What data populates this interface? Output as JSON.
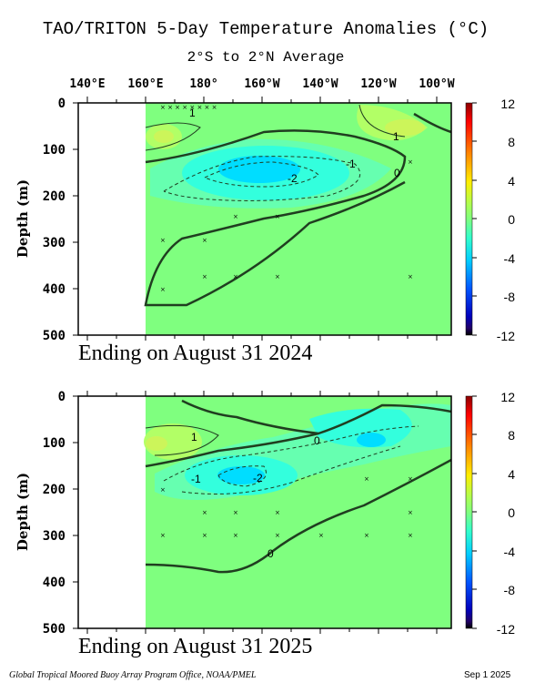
{
  "header": {
    "title": "TAO/TRITON 5-Day Temperature Anomalies (°C)",
    "subtitle": "2°S to 2°N Average"
  },
  "footer": {
    "credit": "Global Tropical Moored Buoy Array Program Office, NOAA/PMEL",
    "date": "Sep  1 2025"
  },
  "chart_data": [
    {
      "type": "heatmap",
      "caption": "Ending on August 31 2024",
      "ylabel": "Depth (m)",
      "x_ticklabels": [
        "140°E",
        "160°E",
        "180°",
        "160°W",
        "140°W",
        "120°W",
        "100°W"
      ],
      "y_ticklabels": [
        "0",
        "100",
        "200",
        "300",
        "400",
        "500"
      ],
      "ylim": [
        500,
        0
      ],
      "xlim": [
        "130°E",
        "80°W"
      ],
      "data_extent_west": "160°E",
      "colorbar": {
        "ticks": [
          "12",
          "8",
          "4",
          "0",
          "-4",
          "-8",
          "-12"
        ],
        "range": [
          -12,
          12
        ]
      },
      "contour_labels": [
        "1",
        "1",
        "-1",
        "-2",
        "0"
      ],
      "features": [
        {
          "label": "warm anomaly (~1°C)",
          "lon": "165°E",
          "depth_m": [
            40,
            110
          ]
        },
        {
          "label": "warm anomaly (~1°C)",
          "lon": "115°W",
          "depth_m": [
            0,
            80
          ]
        },
        {
          "label": "cold anomaly core (< -2°C)",
          "lon": "165°W",
          "depth_m": [
            120,
            170
          ]
        },
        {
          "label": "zero contour lower boundary",
          "depth_m": [
            200,
            335
          ]
        }
      ]
    },
    {
      "type": "heatmap",
      "caption": "Ending on August 31 2025",
      "ylabel": "Depth (m)",
      "x_ticklabels": [
        "140°E",
        "160°E",
        "180°",
        "160°W",
        "140°W",
        "120°W",
        "100°W"
      ],
      "y_ticklabels": [
        "0",
        "100",
        "200",
        "300",
        "400",
        "500"
      ],
      "ylim": [
        500,
        0
      ],
      "xlim": [
        "130°E",
        "80°W"
      ],
      "data_extent_west": "160°E",
      "colorbar": {
        "ticks": [
          "12",
          "8",
          "4",
          "0",
          "-4",
          "-8",
          "-12"
        ],
        "range": [
          -12,
          12
        ]
      },
      "contour_labels": [
        "1",
        "0",
        "-1",
        "-2",
        "0"
      ],
      "features": [
        {
          "label": "warm anomaly (~1°C)",
          "lon": "165°E",
          "depth_m": [
            50,
            120
          ]
        },
        {
          "label": "cold anomaly core (< -2°C)",
          "lon": "170°W",
          "depth_m": [
            140,
            200
          ]
        },
        {
          "label": "cold anomaly (~-1°C)",
          "lon": "125°W",
          "depth_m": [
            60,
            120
          ]
        },
        {
          "label": "zero contour lower boundary",
          "depth_m": [
            130,
            380
          ]
        }
      ]
    }
  ]
}
